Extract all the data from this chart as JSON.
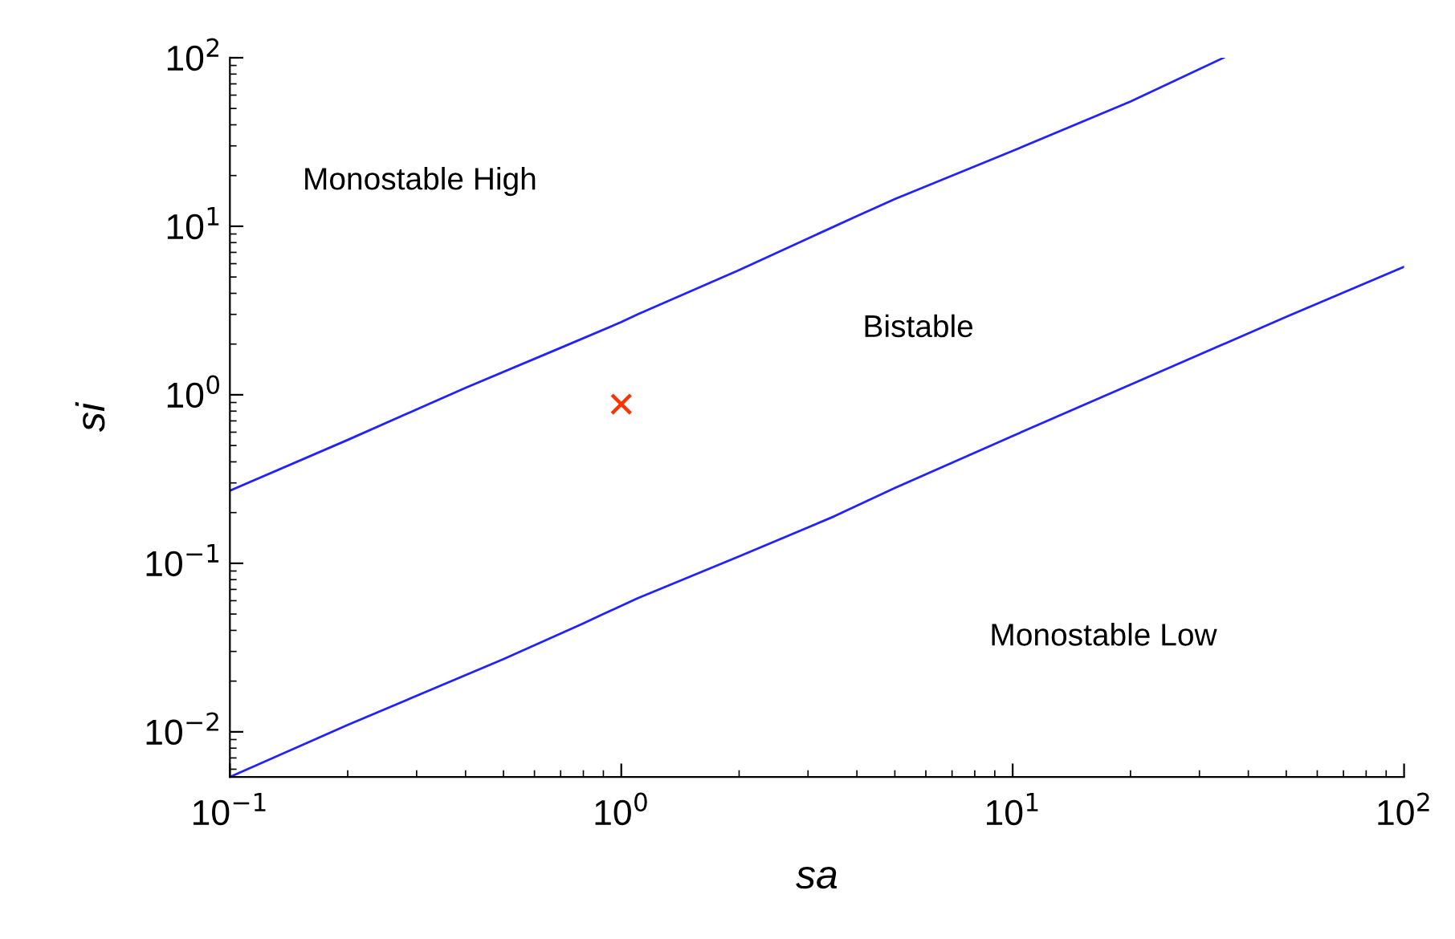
{
  "chart_data": {
    "type": "line",
    "xlabel": "sa",
    "ylabel": "si",
    "log": "xy",
    "grid": false,
    "legend": false,
    "xlim": [
      0.1,
      100
    ],
    "ylim": [
      0.0054,
      100
    ],
    "xticks": [
      {
        "value": 0.1,
        "label": "10$^{−1}$"
      },
      {
        "value": 1,
        "label": "10$^{0}$"
      },
      {
        "value": 10,
        "label": "10$^{1}$"
      },
      {
        "value": 100,
        "label": "10$^{2}$"
      }
    ],
    "yticks": [
      {
        "value": 0.01,
        "label": "10$^{−2}$"
      },
      {
        "value": 0.1,
        "label": "10$^{−1}$"
      },
      {
        "value": 1,
        "label": "10$^{0}$"
      },
      {
        "value": 10,
        "label": "10$^{1}$"
      },
      {
        "value": 100,
        "label": "10$^{2}$"
      }
    ],
    "annotations": [
      "Monostable High",
      "Bistable",
      "Monostable Low"
    ],
    "series": [
      {
        "color": "#2222ff",
        "marker": "none",
        "line_style": "solid",
        "x": [
          0.1,
          0.2,
          0.4,
          0.7,
          1,
          1.1,
          2,
          4,
          5,
          10,
          20,
          34.6
        ],
        "values": [
          0.27,
          0.54,
          1.1,
          1.9,
          2.7,
          3.0,
          5.5,
          11.5,
          14.5,
          28,
          55,
          100
        ]
      },
      {
        "color": "#2222ff",
        "marker": "none",
        "line_style": "solid",
        "x": [
          0.1,
          0.2,
          0.5,
          0.8,
          0.9,
          1.1,
          2,
          3.5,
          5,
          10,
          20,
          50,
          100
        ],
        "values": [
          0.0054,
          0.011,
          0.027,
          0.044,
          0.05,
          0.062,
          0.11,
          0.19,
          0.28,
          0.57,
          1.15,
          2.9,
          5.75
        ]
      },
      {
        "type": "scatter",
        "color": "#ff3300",
        "marker": "cross",
        "x": [
          1
        ],
        "values": [
          0.88
        ]
      }
    ]
  }
}
